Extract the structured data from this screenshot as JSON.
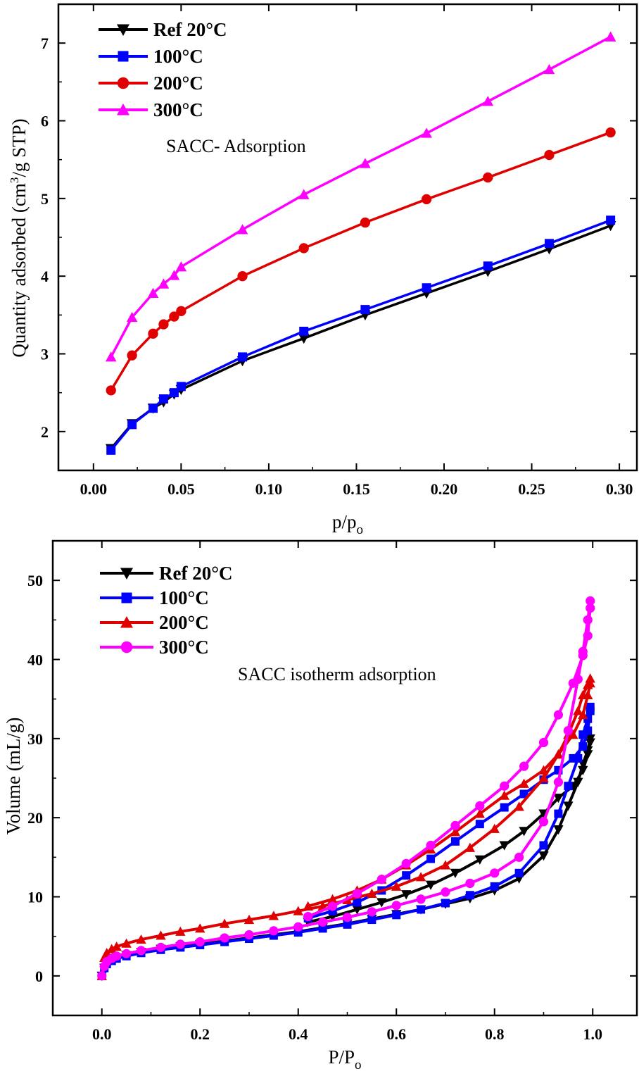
{
  "chart_data": [
    {
      "type": "line",
      "title": "",
      "annotation": "SACC- Adsorption",
      "xlabel": "p/p",
      "xlabel_sub": "o",
      "ylabel_pre": "Quantity adsorbed (cm",
      "ylabel_sup": "3",
      "ylabel_post": "/g STP)",
      "xlim": [
        -0.02,
        0.31
      ],
      "ylim": [
        1.5,
        7.5
      ],
      "xticks": [
        "0.00",
        "0.05",
        "0.10",
        "0.15",
        "0.20",
        "0.25",
        "0.30"
      ],
      "xtick_values": [
        0,
        0.05,
        0.1,
        0.15,
        0.2,
        0.25,
        0.3
      ],
      "yticks": [
        "2",
        "3",
        "4",
        "5",
        "6",
        "7"
      ],
      "ytick_values": [
        2,
        3,
        4,
        5,
        6,
        7
      ],
      "legend_position": "top-left",
      "x": [
        0.01,
        0.022,
        0.034,
        0.04,
        0.046,
        0.05,
        0.085,
        0.12,
        0.155,
        0.19,
        0.225,
        0.26,
        0.295
      ],
      "series": [
        {
          "name": "Ref 20°C",
          "color": "#000000",
          "marker": "triangle-down",
          "values": [
            1.78,
            2.1,
            2.3,
            2.38,
            2.48,
            2.54,
            2.91,
            3.2,
            3.5,
            3.78,
            4.06,
            4.35,
            4.65
          ]
        },
        {
          "name": "100°C",
          "color": "#0000ff",
          "marker": "square",
          "values": [
            1.76,
            2.09,
            2.3,
            2.42,
            2.5,
            2.58,
            2.96,
            3.29,
            3.57,
            3.85,
            4.13,
            4.42,
            4.72
          ]
        },
        {
          "name": "200°C",
          "color": "#e00000",
          "marker": "circle",
          "values": [
            2.53,
            2.98,
            3.26,
            3.38,
            3.48,
            3.55,
            4.0,
            4.36,
            4.69,
            4.99,
            5.27,
            5.56,
            5.85
          ]
        },
        {
          "name": "300°C",
          "color": "#ff00ff",
          "marker": "triangle-up",
          "values": [
            2.96,
            3.47,
            3.78,
            3.9,
            4.01,
            4.12,
            4.6,
            5.05,
            5.45,
            5.84,
            6.25,
            6.66,
            7.08
          ]
        }
      ]
    },
    {
      "type": "line",
      "title": "",
      "annotation": "SACC isotherm adsorption",
      "xlabel": "P/P",
      "xlabel_sub": "o",
      "ylabel": "Volume (mL/g)",
      "xlim": [
        -0.1,
        1.09
      ],
      "ylim": [
        -5,
        55
      ],
      "xticks": [
        "0.0",
        "0.2",
        "0.4",
        "0.6",
        "0.8",
        "1.0"
      ],
      "xtick_values": [
        0,
        0.2,
        0.4,
        0.6,
        0.8,
        1.0
      ],
      "yticks": [
        "0",
        "10",
        "20",
        "30",
        "40",
        "50"
      ],
      "ytick_values": [
        0,
        10,
        20,
        30,
        40,
        50
      ],
      "legend_position": "top-left",
      "x": [
        0,
        0.005,
        0.01,
        0.02,
        0.03,
        0.05,
        0.08,
        0.12,
        0.16,
        0.2,
        0.25,
        0.3,
        0.35,
        0.4,
        0.45,
        0.5,
        0.55,
        0.6,
        0.65,
        0.7,
        0.75,
        0.8,
        0.85,
        0.9,
        0.93,
        0.95,
        0.97,
        0.98,
        0.99,
        0.995
      ],
      "series": [
        {
          "name": "Ref 20°C",
          "color": "#000000",
          "marker": "triangle-down",
          "adsorption": [
            0,
            1.0,
            1.6,
            2.0,
            2.3,
            2.6,
            3.0,
            3.4,
            3.7,
            4.0,
            4.4,
            4.8,
            5.2,
            5.6,
            6.1,
            6.6,
            7.2,
            7.8,
            8.4,
            9.1,
            9.8,
            10.8,
            12.3,
            15.2,
            18.5,
            21.5,
            24.5,
            26.8,
            28.5,
            30.0
          ],
          "desorption": [
            29.5,
            28.0,
            26.0,
            24.0,
            22.5,
            20.5,
            18.3,
            16.5,
            14.7,
            13.0,
            11.5,
            10.3,
            9.3,
            8.4,
            7.5,
            6.8
          ]
        },
        {
          "name": "100°C",
          "color": "#0000ff",
          "marker": "square",
          "adsorption": [
            0,
            1.0,
            1.5,
            1.9,
            2.2,
            2.5,
            2.9,
            3.3,
            3.6,
            3.9,
            4.3,
            4.7,
            5.1,
            5.5,
            6.0,
            6.5,
            7.1,
            7.7,
            8.4,
            9.2,
            10.2,
            11.3,
            13.0,
            16.5,
            20.5,
            24.0,
            27.5,
            30.5,
            32.5,
            34.0
          ],
          "desorption": [
            33.5,
            31.0,
            29.0,
            27.5,
            26.0,
            24.8,
            23.0,
            21.3,
            19.2,
            17.0,
            14.8,
            12.7,
            10.8,
            9.3,
            8.2,
            7.3
          ]
        },
        {
          "name": "200°C",
          "color": "#e00000",
          "marker": "triangle-up",
          "adsorption": [
            0,
            2.3,
            2.9,
            3.4,
            3.7,
            4.1,
            4.6,
            5.1,
            5.6,
            6.0,
            6.6,
            7.1,
            7.6,
            8.2,
            8.8,
            9.6,
            10.4,
            11.3,
            12.5,
            14.0,
            16.2,
            18.6,
            21.4,
            25.0,
            28.0,
            30.5,
            33.5,
            35.5,
            36.8,
            37.6
          ],
          "desorption": [
            37.0,
            35.5,
            33.0,
            30.5,
            28.0,
            26.0,
            24.3,
            22.8,
            20.5,
            18.2,
            16.0,
            14.0,
            12.2,
            10.8,
            9.7,
            8.8
          ]
        },
        {
          "name": "300°C",
          "color": "#ff00ff",
          "marker": "circle",
          "adsorption": [
            0,
            1.2,
            1.8,
            2.2,
            2.5,
            2.8,
            3.2,
            3.6,
            4.0,
            4.3,
            4.8,
            5.2,
            5.7,
            6.2,
            6.8,
            7.4,
            8.1,
            8.9,
            9.7,
            10.6,
            11.7,
            13.0,
            15.0,
            19.5,
            24.5,
            31.0,
            37.5,
            41.0,
            45.0,
            47.4
          ],
          "desorption": [
            46.5,
            43.0,
            40.5,
            37.0,
            33.0,
            29.5,
            26.5,
            24.0,
            21.5,
            19.0,
            16.5,
            14.2,
            12.2,
            10.4,
            8.8,
            7.5
          ]
        }
      ],
      "desorption_x": [
        0.995,
        0.99,
        0.98,
        0.96,
        0.93,
        0.9,
        0.86,
        0.82,
        0.77,
        0.72,
        0.67,
        0.62,
        0.57,
        0.52,
        0.47,
        0.42
      ]
    }
  ]
}
